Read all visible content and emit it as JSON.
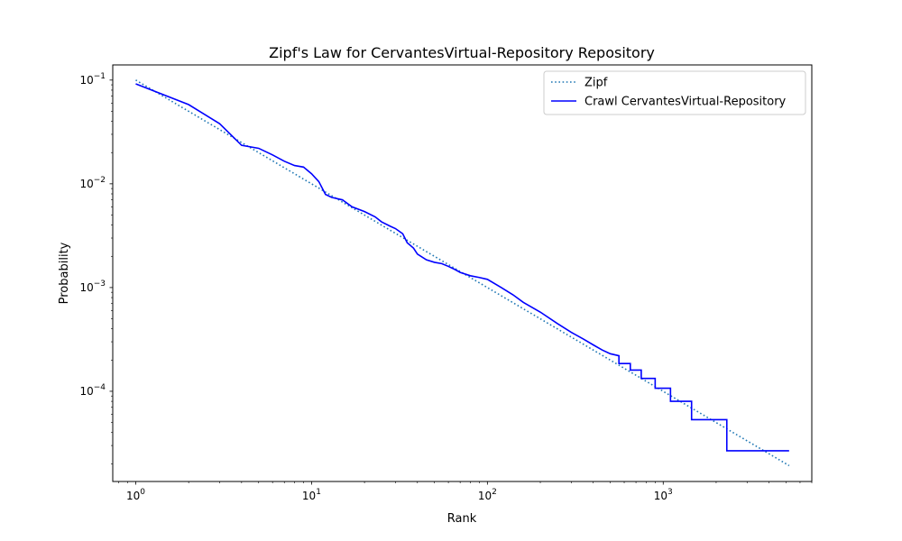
{
  "chart_data": {
    "type": "line",
    "title": "Zipf's Law for CervantesVirtual-Repository Repository",
    "xlabel": "Rank",
    "ylabel": "Probability",
    "xscale": "log",
    "yscale": "log",
    "xlim": [
      0.74,
      7000
    ],
    "ylim": [
      1.35e-05,
      0.14
    ],
    "grid": false,
    "legend_position": "top-right",
    "x_ticks": [
      {
        "value": 1,
        "base": "10",
        "exp": "0"
      },
      {
        "value": 10,
        "base": "10",
        "exp": "1"
      },
      {
        "value": 100,
        "base": "10",
        "exp": "2"
      },
      {
        "value": 1000,
        "base": "10",
        "exp": "3"
      }
    ],
    "y_ticks": [
      {
        "value": 0.1,
        "base": "10",
        "exp": "−1"
      },
      {
        "value": 0.01,
        "base": "10",
        "exp": "−2"
      },
      {
        "value": 0.001,
        "base": "10",
        "exp": "−3"
      },
      {
        "value": 0.0001,
        "base": "10",
        "exp": "−4"
      }
    ],
    "series": [
      {
        "name": "Zipf",
        "color": "#1f77b4",
        "style": "dotted",
        "x": [
          1,
          5200
        ],
        "y": [
          0.1,
          1.92e-05
        ]
      },
      {
        "name": "Crawl CervantesVirtual-Repository",
        "color": "#0000ff",
        "style": "solid",
        "x": [
          1,
          2,
          3,
          4,
          5,
          6,
          7,
          8,
          9,
          10,
          11,
          12,
          13,
          15,
          17,
          20,
          23,
          25,
          28,
          30,
          33,
          35,
          38,
          40,
          45,
          50,
          55,
          60,
          65,
          70,
          80,
          90,
          100,
          120,
          140,
          160,
          200,
          250,
          300,
          350,
          400,
          450,
          500,
          560,
          560,
          650,
          650,
          750,
          750,
          900,
          900,
          1100,
          1100,
          1450,
          1450,
          2300,
          2300,
          5200
        ],
        "y": [
          0.092,
          0.058,
          0.038,
          0.0235,
          0.022,
          0.019,
          0.0165,
          0.015,
          0.0145,
          0.0125,
          0.0105,
          0.0079,
          0.0074,
          0.007,
          0.006,
          0.0054,
          0.0048,
          0.0043,
          0.0039,
          0.0037,
          0.0033,
          0.0027,
          0.0024,
          0.0021,
          0.00185,
          0.00175,
          0.0017,
          0.0016,
          0.0015,
          0.0014,
          0.0013,
          0.00125,
          0.0012,
          0.001,
          0.00085,
          0.00072,
          0.00058,
          0.00045,
          0.00037,
          0.00032,
          0.00028,
          0.00025,
          0.00023,
          0.00022,
          0.000185,
          0.000185,
          0.00016,
          0.00016,
          0.000133,
          0.000133,
          0.000107,
          0.000107,
          8e-05,
          8e-05,
          5.33e-05,
          5.33e-05,
          2.67e-05,
          2.67e-05
        ]
      }
    ]
  }
}
